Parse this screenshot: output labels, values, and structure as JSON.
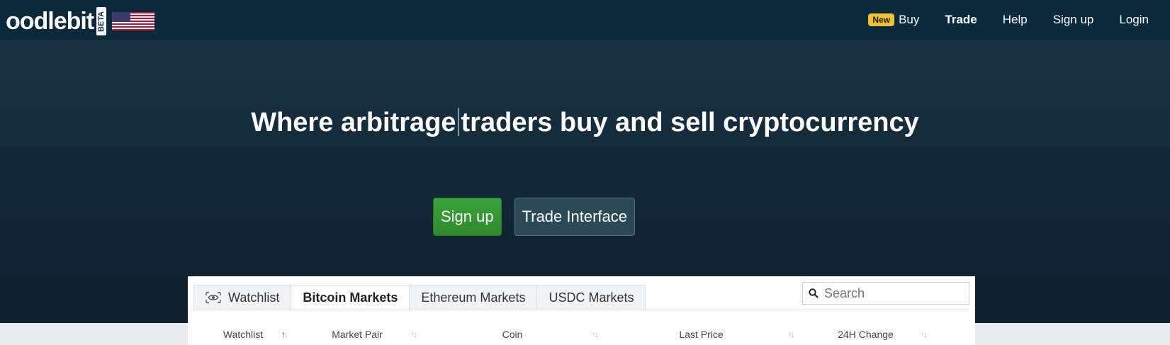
{
  "brand": {
    "name": "oodlebit",
    "beta": "BETA",
    "flag": "us-flag-icon"
  },
  "nav": {
    "new_badge": "New",
    "buy": "Buy",
    "trade": "Trade",
    "help": "Help",
    "signup": "Sign up",
    "login": "Login"
  },
  "hero": {
    "headline_part1": "Where arbitrage",
    "headline_part2": "traders buy and sell cryptocurrency",
    "signup_button": "Sign up",
    "trade_button": "Trade Interface"
  },
  "markets": {
    "tabs": [
      "Watchlist",
      "Bitcoin Markets",
      "Ethereum Markets",
      "USDC Markets"
    ],
    "active_tab": "Bitcoin Markets",
    "search_placeholder": "Search",
    "columns": [
      "Watchlist",
      "Market Pair",
      "Coin",
      "Last Price",
      "24H Change"
    ]
  },
  "colors": {
    "topbar": "#0a2a3b",
    "accent_green": "#3aa43a",
    "badge_yellow": "#f2c12e"
  }
}
